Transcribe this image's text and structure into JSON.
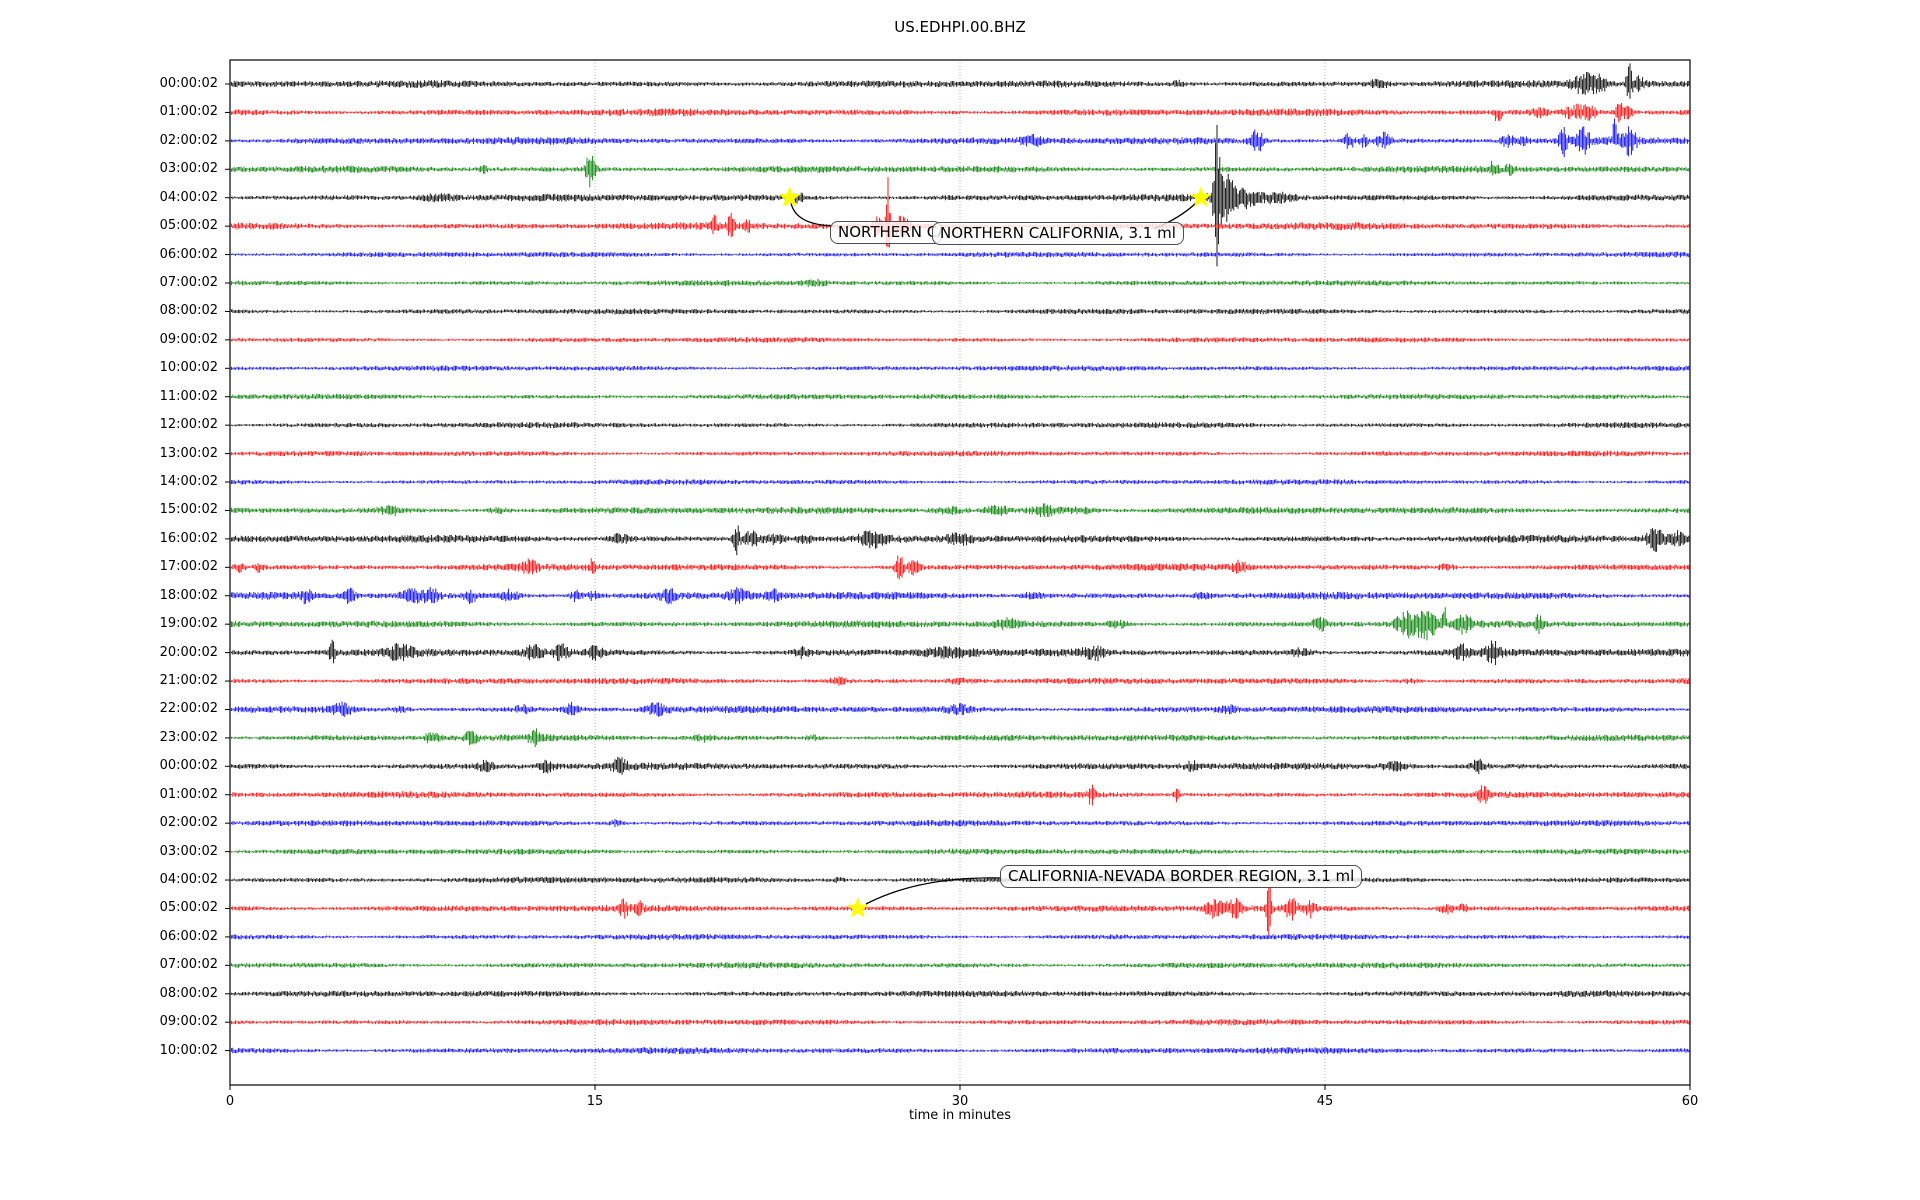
{
  "title": "US.EDHPI.00.BHZ",
  "chart_data": {
    "type": "line",
    "subtype": "helicorder-dayplot",
    "title": "US.EDHPI.00.BHZ",
    "xlabel": "time in minutes",
    "x_range": [
      0,
      60
    ],
    "x_ticks": [
      "0",
      "15",
      "30",
      "45",
      "60"
    ],
    "grid": {
      "vertical_gridlines_minutes": [
        15,
        30,
        45
      ],
      "style": "dotted",
      "color": "#b3b3b3"
    },
    "trace_color_cycle": [
      "#000000",
      "#ff0000",
      "#0000ff",
      "#008000"
    ],
    "marker": {
      "shape": "star",
      "color": "#ffff00"
    },
    "rows": [
      {
        "label": "00:00:02",
        "color": "#000000",
        "noise": 2.3,
        "bursts": [
          {
            "t": 39,
            "a": 1.5,
            "w": 0.3
          },
          {
            "t": 47.2,
            "a": 2,
            "w": 0.4
          },
          {
            "t": 55.7,
            "a": 3,
            "w": 0.5
          },
          {
            "t": 56.3,
            "a": 2.5,
            "w": 0.25
          },
          {
            "t": 57.5,
            "a": 6.5,
            "w": 0.12
          },
          {
            "t": 57.9,
            "a": 2,
            "w": 0.25
          }
        ]
      },
      {
        "label": "01:00:02",
        "color": "#ff0000",
        "noise": 2.3,
        "bursts": [
          {
            "t": 52.1,
            "a": 4,
            "w": 0.15,
            "dir": 1
          },
          {
            "t": 53.8,
            "a": 2,
            "w": 0.3
          },
          {
            "t": 55.3,
            "a": 3.5,
            "w": 0.45
          },
          {
            "t": 55.9,
            "a": 3,
            "w": 0.3
          },
          {
            "t": 57.1,
            "a": 5,
            "w": 0.22
          },
          {
            "t": 57.5,
            "a": 3,
            "w": 0.2
          }
        ]
      },
      {
        "label": "02:00:02",
        "color": "#0000ff",
        "noise": 2.3,
        "bursts": [
          {
            "t": 33,
            "a": 1.4,
            "w": 0.4
          },
          {
            "t": 42.2,
            "a": 5,
            "w": 0.25
          },
          {
            "t": 46,
            "a": 3.5,
            "w": 0.2
          },
          {
            "t": 46.6,
            "a": 2.5,
            "w": 0.15
          },
          {
            "t": 47.4,
            "a": 2.8,
            "w": 0.3
          },
          {
            "t": 52.5,
            "a": 2.5,
            "w": 0.3
          },
          {
            "t": 53.2,
            "a": 2,
            "w": 0.2
          },
          {
            "t": 54.8,
            "a": 4.5,
            "w": 0.18
          },
          {
            "t": 55.6,
            "a": 3.5,
            "w": 0.28
          },
          {
            "t": 56.9,
            "a": 6,
            "w": 0.12,
            "dir": -1
          },
          {
            "t": 57.5,
            "a": 3,
            "w": 0.3
          }
        ]
      },
      {
        "label": "03:00:02",
        "color": "#008000",
        "noise": 2.2,
        "bursts": [
          {
            "t": 10.4,
            "a": 2.5,
            "w": 0.15
          },
          {
            "t": 14.8,
            "a": 7,
            "w": 0.2
          },
          {
            "t": 51.9,
            "a": 2,
            "w": 0.18
          },
          {
            "t": 52.6,
            "a": 1.8,
            "w": 0.15
          }
        ]
      },
      {
        "label": "04:00:02",
        "color": "#000000",
        "noise": 2.3,
        "bursts": [
          {
            "t": 8.5,
            "a": 1.2,
            "w": 0.8
          },
          {
            "t": 23.35,
            "a": 1.6,
            "w": 0.25
          },
          {
            "t": 40.55,
            "a": 17,
            "w": 0.12
          },
          {
            "t": 40.9,
            "a": 6,
            "w": 0.4
          },
          {
            "t": 41.7,
            "a": 2.5,
            "w": 0.5
          },
          {
            "t": 43,
            "a": 1.4,
            "w": 0.8
          }
        ]
      },
      {
        "label": "05:00:02",
        "color": "#ff0000",
        "noise": 2.3,
        "bursts": [
          {
            "t": 19.9,
            "a": 2.5,
            "w": 0.12
          },
          {
            "t": 20.6,
            "a": 3,
            "w": 0.16
          },
          {
            "t": 21.3,
            "a": 2,
            "w": 0.12
          },
          {
            "t": 26.6,
            "a": 2.5,
            "w": 0.2
          },
          {
            "t": 27.05,
            "a": 15,
            "w": 0.1
          },
          {
            "t": 27.6,
            "a": 3,
            "w": 0.3
          }
        ]
      },
      {
        "label": "06:00:02",
        "color": "#0000ff",
        "noise": 1.7,
        "bursts": []
      },
      {
        "label": "07:00:02",
        "color": "#008000",
        "noise": 1.7,
        "bursts": [
          {
            "t": 24,
            "a": 1.3,
            "w": 0.5
          }
        ]
      },
      {
        "label": "08:00:02",
        "color": "#000000",
        "noise": 1.8,
        "bursts": []
      },
      {
        "label": "09:00:02",
        "color": "#ff0000",
        "noise": 1.7,
        "bursts": []
      },
      {
        "label": "10:00:02",
        "color": "#0000ff",
        "noise": 1.7,
        "bursts": []
      },
      {
        "label": "11:00:02",
        "color": "#008000",
        "noise": 1.7,
        "bursts": []
      },
      {
        "label": "12:00:02",
        "color": "#000000",
        "noise": 1.8,
        "bursts": []
      },
      {
        "label": "13:00:02",
        "color": "#ff0000",
        "noise": 1.7,
        "bursts": []
      },
      {
        "label": "14:00:02",
        "color": "#0000ff",
        "noise": 1.7,
        "bursts": []
      },
      {
        "label": "15:00:02",
        "color": "#008000",
        "noise": 2.2,
        "bursts": [
          {
            "t": 6.6,
            "a": 1.6,
            "w": 0.4
          },
          {
            "t": 11,
            "a": 1.4,
            "w": 0.5
          },
          {
            "t": 29.5,
            "a": 1.5,
            "w": 0.6
          },
          {
            "t": 31.5,
            "a": 1.8,
            "w": 0.5
          },
          {
            "t": 33.5,
            "a": 2.2,
            "w": 0.6
          },
          {
            "t": 35,
            "a": 1.5,
            "w": 0.5
          }
        ]
      },
      {
        "label": "16:00:02",
        "color": "#000000",
        "noise": 2.4,
        "bursts": [
          {
            "t": 16,
            "a": 1.5,
            "w": 0.5
          },
          {
            "t": 20.8,
            "a": 8.5,
            "w": 0.12
          },
          {
            "t": 21.4,
            "a": 4,
            "w": 0.45
          },
          {
            "t": 22.4,
            "a": 2.5,
            "w": 0.4
          },
          {
            "t": 23.6,
            "a": 2,
            "w": 0.3
          },
          {
            "t": 26.4,
            "a": 2,
            "w": 0.5
          },
          {
            "t": 30,
            "a": 1.3,
            "w": 0.5
          },
          {
            "t": 58.6,
            "a": 3.5,
            "w": 0.35
          },
          {
            "t": 59.5,
            "a": 2,
            "w": 0.3
          }
        ]
      },
      {
        "label": "17:00:02",
        "color": "#ff0000",
        "noise": 2.2,
        "bursts": [
          {
            "t": 0.4,
            "a": 3,
            "w": 0.2
          },
          {
            "t": 1.2,
            "a": 2,
            "w": 0.2
          },
          {
            "t": 12.3,
            "a": 1.6,
            "w": 0.3
          },
          {
            "t": 14.9,
            "a": 2.2,
            "w": 0.15
          },
          {
            "t": 27.5,
            "a": 8,
            "w": 0.16
          },
          {
            "t": 28.1,
            "a": 3,
            "w": 0.3
          },
          {
            "t": 41.5,
            "a": 1.6,
            "w": 0.3
          },
          {
            "t": 50,
            "a": 1.4,
            "w": 0.3
          }
        ]
      },
      {
        "label": "18:00:02",
        "color": "#0000ff",
        "noise": 2.4,
        "bursts": [
          {
            "t": 3.2,
            "a": 2,
            "w": 0.3
          },
          {
            "t": 4.9,
            "a": 2.5,
            "w": 0.25
          },
          {
            "t": 7.5,
            "a": 3,
            "w": 0.45
          },
          {
            "t": 8.3,
            "a": 2.5,
            "w": 0.3
          },
          {
            "t": 9.9,
            "a": 2.2,
            "w": 0.3
          },
          {
            "t": 11.5,
            "a": 2.5,
            "w": 0.35
          },
          {
            "t": 14.2,
            "a": 3,
            "w": 0.25
          },
          {
            "t": 14.9,
            "a": 2.2,
            "w": 0.2
          },
          {
            "t": 18,
            "a": 1.6,
            "w": 0.3
          },
          {
            "t": 20.9,
            "a": 1.8,
            "w": 0.4
          },
          {
            "t": 22.3,
            "a": 1.6,
            "w": 0.3
          },
          {
            "t": 33,
            "a": 1.5,
            "w": 0.4
          },
          {
            "t": 40,
            "a": 1.3,
            "w": 0.4
          }
        ]
      },
      {
        "label": "19:00:02",
        "color": "#008000",
        "noise": 2.2,
        "bursts": [
          {
            "t": 32,
            "a": 1.5,
            "w": 0.5
          },
          {
            "t": 36.5,
            "a": 1.6,
            "w": 0.4
          },
          {
            "t": 44.8,
            "a": 2.2,
            "w": 0.3
          },
          {
            "t": 48.4,
            "a": 4,
            "w": 0.5
          },
          {
            "t": 49.2,
            "a": 4.5,
            "w": 0.35
          },
          {
            "t": 49.9,
            "a": 7,
            "w": 0.1,
            "dir": -1
          },
          {
            "t": 50.7,
            "a": 2,
            "w": 0.3
          },
          {
            "t": 53.8,
            "a": 2.5,
            "w": 0.15
          }
        ]
      },
      {
        "label": "20:00:02",
        "color": "#000000",
        "noise": 2.4,
        "bursts": [
          {
            "t": 4.2,
            "a": 3.5,
            "w": 0.12
          },
          {
            "t": 7,
            "a": 1.6,
            "w": 0.5
          },
          {
            "t": 12.5,
            "a": 2.2,
            "w": 0.4
          },
          {
            "t": 13.6,
            "a": 2.5,
            "w": 0.3
          },
          {
            "t": 15,
            "a": 1.8,
            "w": 0.3
          },
          {
            "t": 23.5,
            "a": 1.6,
            "w": 0.3
          },
          {
            "t": 29.5,
            "a": 1.4,
            "w": 1
          },
          {
            "t": 35.5,
            "a": 1.8,
            "w": 0.4
          },
          {
            "t": 44,
            "a": 1.4,
            "w": 0.4
          },
          {
            "t": 50.6,
            "a": 2,
            "w": 0.3
          },
          {
            "t": 51.9,
            "a": 2.8,
            "w": 0.3
          }
        ]
      },
      {
        "label": "21:00:02",
        "color": "#ff0000",
        "noise": 2.0,
        "bursts": [
          {
            "t": 25,
            "a": 1.4,
            "w": 0.4
          },
          {
            "t": 30,
            "a": 1.3,
            "w": 0.6
          },
          {
            "t": 48.5,
            "a": 1.3,
            "w": 0.4
          }
        ]
      },
      {
        "label": "22:00:02",
        "color": "#0000ff",
        "noise": 2.2,
        "bursts": [
          {
            "t": 4.6,
            "a": 2.2,
            "w": 0.4
          },
          {
            "t": 7,
            "a": 1.5,
            "w": 0.3
          },
          {
            "t": 12,
            "a": 1.5,
            "w": 0.3
          },
          {
            "t": 14,
            "a": 2.5,
            "w": 0.3
          },
          {
            "t": 17.5,
            "a": 2,
            "w": 0.5
          },
          {
            "t": 30,
            "a": 1.4,
            "w": 0.5
          },
          {
            "t": 41,
            "a": 1.3,
            "w": 0.4
          }
        ]
      },
      {
        "label": "23:00:02",
        "color": "#008000",
        "noise": 2.0,
        "bursts": [
          {
            "t": 8.3,
            "a": 1.8,
            "w": 0.3
          },
          {
            "t": 9.9,
            "a": 2,
            "w": 0.25
          },
          {
            "t": 12.6,
            "a": 1.8,
            "w": 0.3
          },
          {
            "t": 19.5,
            "a": 1.4,
            "w": 0.4
          },
          {
            "t": 24,
            "a": 1.5,
            "w": 0.3
          }
        ]
      },
      {
        "label": "00:00:02",
        "color": "#000000",
        "noise": 2.2,
        "bursts": [
          {
            "t": 10.5,
            "a": 1.6,
            "w": 0.3
          },
          {
            "t": 13,
            "a": 2,
            "w": 0.3
          },
          {
            "t": 16,
            "a": 1.8,
            "w": 0.3
          },
          {
            "t": 39.5,
            "a": 1.5,
            "w": 0.3
          },
          {
            "t": 47.9,
            "a": 2,
            "w": 0.5
          },
          {
            "t": 51.3,
            "a": 2.5,
            "w": 0.3
          }
        ]
      },
      {
        "label": "01:00:02",
        "color": "#ff0000",
        "noise": 2.0,
        "bursts": [
          {
            "t": 35.4,
            "a": 3,
            "w": 0.15
          },
          {
            "t": 38.9,
            "a": 3.5,
            "w": 0.12
          },
          {
            "t": 51.5,
            "a": 2.5,
            "w": 0.2
          }
        ]
      },
      {
        "label": "02:00:02",
        "color": "#0000ff",
        "noise": 1.9,
        "bursts": [
          {
            "t": 15.9,
            "a": 2.2,
            "w": 0.25
          }
        ]
      },
      {
        "label": "03:00:02",
        "color": "#008000",
        "noise": 1.8,
        "bursts": []
      },
      {
        "label": "04:00:02",
        "color": "#000000",
        "noise": 2.0,
        "bursts": [
          {
            "t": 25,
            "a": 1.5,
            "w": 0.25
          }
        ]
      },
      {
        "label": "05:00:02",
        "color": "#ff0000",
        "noise": 2.1,
        "bursts": [
          {
            "t": 16.2,
            "a": 2,
            "w": 0.2
          },
          {
            "t": 16.8,
            "a": 1.8,
            "w": 0.15
          },
          {
            "t": 40.5,
            "a": 3,
            "w": 0.4
          },
          {
            "t": 41.3,
            "a": 2.5,
            "w": 0.3
          },
          {
            "t": 42.7,
            "a": 10,
            "w": 0.1
          },
          {
            "t": 43.6,
            "a": 3,
            "w": 0.25
          },
          {
            "t": 44.4,
            "a": 2.5,
            "w": 0.2
          },
          {
            "t": 50,
            "a": 2.5,
            "w": 0.3
          },
          {
            "t": 50.7,
            "a": 2,
            "w": 0.2
          }
        ]
      },
      {
        "label": "06:00:02",
        "color": "#0000ff",
        "noise": 1.8,
        "bursts": []
      },
      {
        "label": "07:00:02",
        "color": "#008000",
        "noise": 1.9,
        "bursts": []
      },
      {
        "label": "08:00:02",
        "color": "#000000",
        "noise": 2.0,
        "bursts": []
      },
      {
        "label": "09:00:02",
        "color": "#ff0000",
        "noise": 1.9,
        "bursts": []
      },
      {
        "label": "10:00:02",
        "color": "#0000ff",
        "noise": 2.0,
        "bursts": []
      }
    ],
    "events": [
      {
        "row": 4,
        "minute": 23.0,
        "label": "NORTHERN CALIFORNIA, 3.1 ml"
      },
      {
        "row": 4,
        "minute": 39.9,
        "label": "NORTHERN CALIFORNIA, 3.1 ml"
      },
      {
        "row": 29,
        "minute": 25.8,
        "label": "CALIFORNIA-NEVADA BORDER REGION, 3.1 ml"
      }
    ],
    "annotations": [
      {
        "text": "NORTHERN CALIFORNIA, 3.1 ml"
      },
      {
        "text": "NORTHERN CALIFORNIA, 3.1 ml"
      },
      {
        "text": "CALIFORNIA-NEVADA BORDER REGION, 3.1 ml"
      }
    ]
  }
}
